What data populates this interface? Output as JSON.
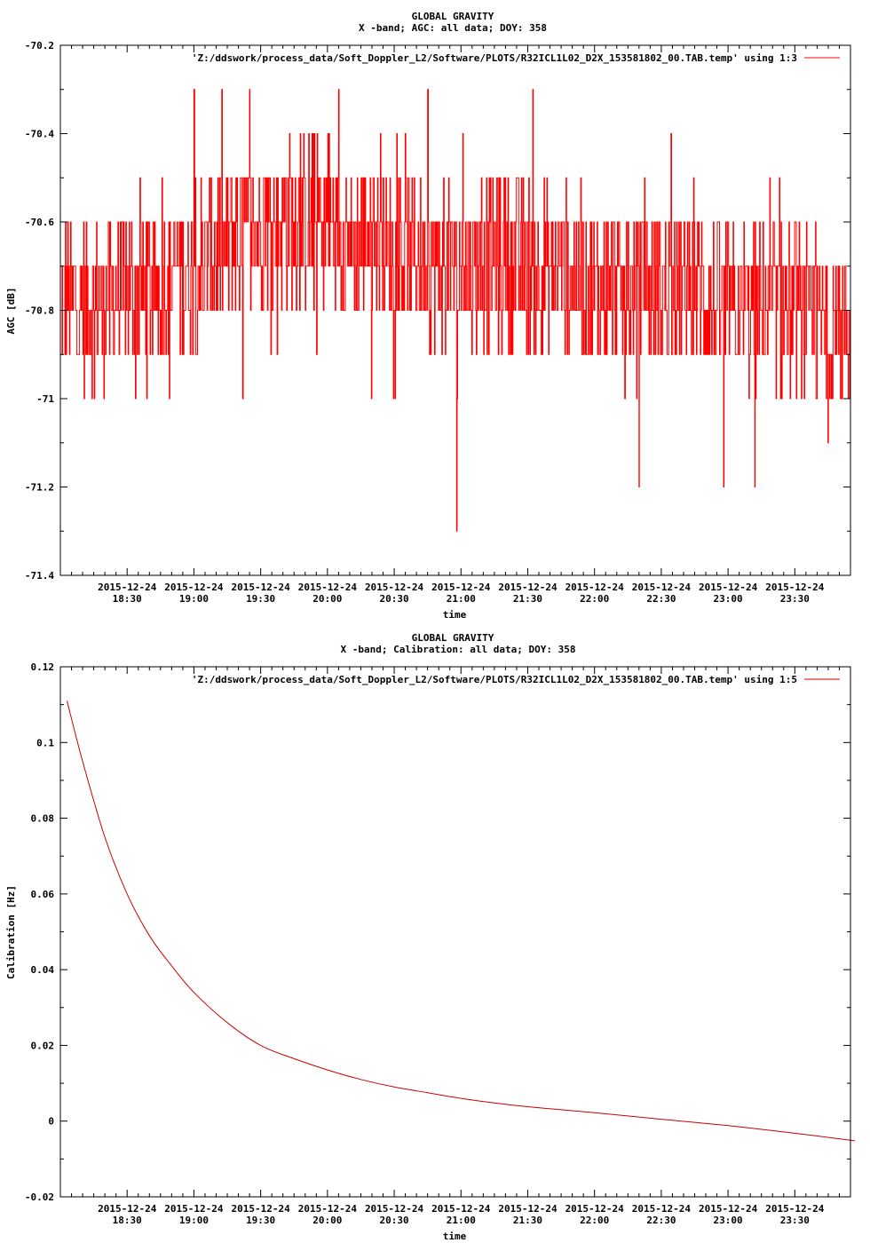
{
  "chart_data": [
    {
      "type": "line",
      "title": "GLOBAL GRAVITY",
      "subtitle": "X -band; AGC: all data; DOY: 358",
      "xlabel": "time",
      "ylabel": "AGC [dB]",
      "ylim": [
        -71.4,
        -70.2
      ],
      "yticks": [
        -70.2,
        -70.4,
        -70.6,
        -70.8,
        -71,
        -71.2,
        -71.4
      ],
      "ytick_labels": [
        "-70.2",
        "-70.4",
        "-70.6",
        "-70.8",
        "-71",
        "-71.2",
        "-71.4"
      ],
      "xlim": [
        "2015-12-24 18:00",
        "2015-12-24 23:55"
      ],
      "xtick_times": [
        "18:30",
        "19:00",
        "19:30",
        "20:00",
        "20:30",
        "21:00",
        "21:30",
        "22:00",
        "22:30",
        "23:00",
        "23:30"
      ],
      "xtick_labels": [
        [
          "2015-12-24",
          "18:30"
        ],
        [
          "2015-12-24",
          "19:00"
        ],
        [
          "2015-12-24",
          "19:30"
        ],
        [
          "2015-12-24",
          "20:00"
        ],
        [
          "2015-12-24",
          "20:30"
        ],
        [
          "2015-12-24",
          "21:00"
        ],
        [
          "2015-12-24",
          "21:30"
        ],
        [
          "2015-12-24",
          "22:00"
        ],
        [
          "2015-12-24",
          "22:30"
        ],
        [
          "2015-12-24",
          "23:00"
        ],
        [
          "2015-12-24",
          "23:30"
        ]
      ],
      "legend": "top-right",
      "grid": false,
      "series": [
        {
          "name": "'Z:/ddswork/process_data/Soft_Doppler_L2/Software/PLOTS/R32ICL1L02_D2X_153581802_00.TAB.temp' using 1:3",
          "color": "#ff0000",
          "x": [
            "18:00",
            "18:15",
            "18:30",
            "18:45",
            "19:00",
            "19:15",
            "19:30",
            "19:45",
            "20:00",
            "20:15",
            "20:30",
            "20:45",
            "21:00",
            "21:15",
            "21:30",
            "21:45",
            "22:00",
            "22:15",
            "22:30",
            "22:45",
            "23:00",
            "23:15",
            "23:30",
            "23:45",
            "23:55"
          ],
          "values": [
            -70.75,
            -70.8,
            -70.75,
            -70.75,
            -70.7,
            -70.65,
            -70.6,
            -70.6,
            -70.6,
            -70.65,
            -70.65,
            -70.7,
            -70.7,
            -70.7,
            -70.7,
            -70.7,
            -70.75,
            -70.75,
            -70.75,
            -70.75,
            -70.8,
            -70.8,
            -70.8,
            -70.85,
            -70.85
          ],
          "spread": [
            -71.1,
            -70.3
          ],
          "extremes": [
            {
              "x": "19:00",
              "y": -70.3
            },
            {
              "x": "19:25",
              "y": -70.3
            },
            {
              "x": "20:05",
              "y": -70.3
            },
            {
              "x": "20:45",
              "y": -70.3
            },
            {
              "x": "20:58",
              "y": -71.3
            },
            {
              "x": "22:20",
              "y": -71.2
            },
            {
              "x": "22:58",
              "y": -71.2
            },
            {
              "x": "23:12",
              "y": -71.2
            }
          ]
        }
      ]
    },
    {
      "type": "line",
      "title": "GLOBAL GRAVITY",
      "subtitle": "X -band; Calibration: all data; DOY: 358",
      "xlabel": "time",
      "ylabel": "Calibration [Hz]",
      "ylim": [
        -0.02,
        0.12
      ],
      "yticks": [
        0.12,
        0.1,
        0.08,
        0.06,
        0.04,
        0.02,
        0,
        -0.02
      ],
      "ytick_labels": [
        "0.12",
        "0.1",
        "0.08",
        "0.06",
        "0.04",
        "0.02",
        "0",
        "-0.02"
      ],
      "xlim": [
        "2015-12-24 18:00",
        "2015-12-24 23:55"
      ],
      "xtick_times": [
        "18:30",
        "19:00",
        "19:30",
        "20:00",
        "20:30",
        "21:00",
        "21:30",
        "22:00",
        "22:30",
        "23:00",
        "23:30"
      ],
      "xtick_labels": [
        [
          "2015-12-24",
          "18:30"
        ],
        [
          "2015-12-24",
          "19:00"
        ],
        [
          "2015-12-24",
          "19:30"
        ],
        [
          "2015-12-24",
          "20:00"
        ],
        [
          "2015-12-24",
          "20:30"
        ],
        [
          "2015-12-24",
          "21:00"
        ],
        [
          "2015-12-24",
          "21:30"
        ],
        [
          "2015-12-24",
          "22:00"
        ],
        [
          "2015-12-24",
          "22:30"
        ],
        [
          "2015-12-24",
          "23:00"
        ],
        [
          "2015-12-24",
          "23:30"
        ]
      ],
      "legend": "top-right",
      "grid": false,
      "series": [
        {
          "name": "'Z:/ddswork/process_data/Soft_Doppler_L2/Software/PLOTS/R32ICL1L02_D2X_153581802_00.TAB.temp' using 1:5",
          "color": "#cc0000",
          "x": [
            "18:03",
            "18:10",
            "18:20",
            "18:30",
            "18:40",
            "18:50",
            "19:00",
            "19:15",
            "19:30",
            "19:45",
            "20:00",
            "20:15",
            "20:30",
            "20:45",
            "21:00",
            "21:15",
            "21:30",
            "21:45",
            "22:00",
            "22:30",
            "23:00",
            "23:30",
            "23:57"
          ],
          "values": [
            0.111,
            0.095,
            0.075,
            0.06,
            0.049,
            0.041,
            0.034,
            0.026,
            0.02,
            0.0165,
            0.0135,
            0.011,
            0.009,
            0.0075,
            0.006,
            0.0048,
            0.0038,
            0.003,
            0.0022,
            0.0005,
            -0.0012,
            -0.0032,
            -0.0052
          ]
        }
      ]
    }
  ]
}
